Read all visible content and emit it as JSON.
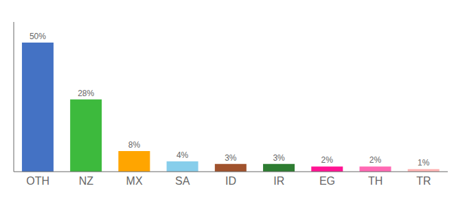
{
  "chart_data": {
    "type": "bar",
    "categories": [
      "OTH",
      "NZ",
      "MX",
      "SA",
      "ID",
      "IR",
      "EG",
      "TH",
      "TR"
    ],
    "values": [
      50,
      28,
      8,
      4,
      3,
      3,
      2,
      2,
      1
    ],
    "value_labels": [
      "50%",
      "28%",
      "8%",
      "4%",
      "3%",
      "3%",
      "2%",
      "2%",
      "1%"
    ],
    "colors": [
      "#4472c4",
      "#3dba3d",
      "#ffa500",
      "#87ceeb",
      "#a0522d",
      "#2e7d32",
      "#ff1493",
      "#ff69b4",
      "#ffb6b6"
    ],
    "ylim": [
      0,
      58
    ],
    "data_labels": true,
    "tick_labels": "x"
  }
}
